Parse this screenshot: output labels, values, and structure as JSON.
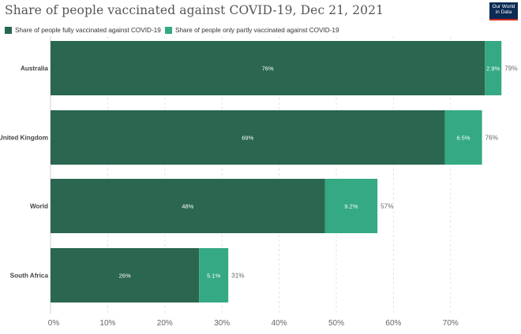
{
  "header": {
    "title": "Share of people vaccinated against COVID-19, Dec 21, 2021",
    "logo_line1": "Our World",
    "logo_line2": "in Data"
  },
  "colors": {
    "full": "#2a6650",
    "partial": "#34a983"
  },
  "chart_data": {
    "type": "bar",
    "orientation": "horizontal",
    "stacked": true,
    "title": "Share of people vaccinated against COVID-19, Dec 21, 2021",
    "xlabel": "",
    "ylabel": "",
    "xlim": [
      0,
      80
    ],
    "ticks": [
      "0%",
      "10%",
      "20%",
      "30%",
      "40%",
      "50%",
      "60%",
      "70%"
    ],
    "categories": [
      "Australia",
      "United Kingdom",
      "World",
      "South Africa"
    ],
    "series": [
      {
        "name": "Share of people fully vaccinated against COVID-19",
        "values": [
          76,
          69,
          48,
          26
        ],
        "labels": [
          "76%",
          "69%",
          "48%",
          "26%"
        ]
      },
      {
        "name": "Share of people only partly vaccinated against COVID-19",
        "values": [
          2.9,
          6.5,
          9.2,
          5.1
        ],
        "labels": [
          "2.9%",
          "6.5%",
          "9.2%",
          "5.1%"
        ]
      }
    ],
    "totals": [
      "79%",
      "76%",
      "57%",
      "31%"
    ],
    "grid": true,
    "legend": "top-left"
  }
}
